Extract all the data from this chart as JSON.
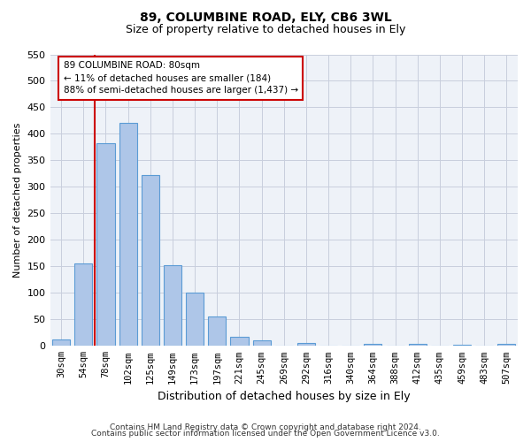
{
  "title1": "89, COLUMBINE ROAD, ELY, CB6 3WL",
  "title2": "Size of property relative to detached houses in Ely",
  "xlabel": "Distribution of detached houses by size in Ely",
  "ylabel": "Number of detached properties",
  "categories": [
    "30sqm",
    "54sqm",
    "78sqm",
    "102sqm",
    "125sqm",
    "149sqm",
    "173sqm",
    "197sqm",
    "221sqm",
    "245sqm",
    "269sqm",
    "292sqm",
    "316sqm",
    "340sqm",
    "364sqm",
    "388sqm",
    "412sqm",
    "435sqm",
    "459sqm",
    "483sqm",
    "507sqm"
  ],
  "values": [
    13,
    155,
    383,
    420,
    322,
    152,
    100,
    55,
    18,
    10,
    0,
    5,
    0,
    0,
    4,
    0,
    4,
    0,
    3,
    0,
    4
  ],
  "bar_color": "#aec6e8",
  "bar_edge_color": "#5b9bd5",
  "vline_index": 1.5,
  "annotation_line1": "89 COLUMBINE ROAD: 80sqm",
  "annotation_line2": "← 11% of detached houses are smaller (184)",
  "annotation_line3": "88% of semi-detached houses are larger (1,437) →",
  "annotation_box_color": "#ffffff",
  "annotation_box_edge": "#cc0000",
  "vline_color": "#cc0000",
  "ylim": [
    0,
    550
  ],
  "yticks": [
    0,
    50,
    100,
    150,
    200,
    250,
    300,
    350,
    400,
    450,
    500,
    550
  ],
  "footnote1": "Contains HM Land Registry data © Crown copyright and database right 2024.",
  "footnote2": "Contains public sector information licensed under the Open Government Licence v3.0.",
  "bg_color": "#eef2f8",
  "grid_color": "#c8cedd"
}
